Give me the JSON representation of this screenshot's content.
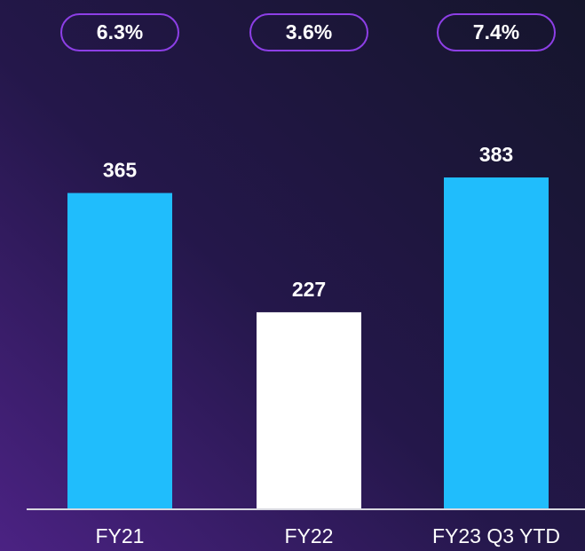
{
  "chart_data": {
    "type": "bar",
    "categories": [
      "FY21",
      "FY22",
      "FY23 Q3 YTD"
    ],
    "values": [
      365,
      227,
      383
    ],
    "colors": [
      "#20bdfc",
      "#ffffff",
      "#20bdfc"
    ],
    "annotations": [
      "6.3%",
      "3.6%",
      "7.4%"
    ]
  }
}
